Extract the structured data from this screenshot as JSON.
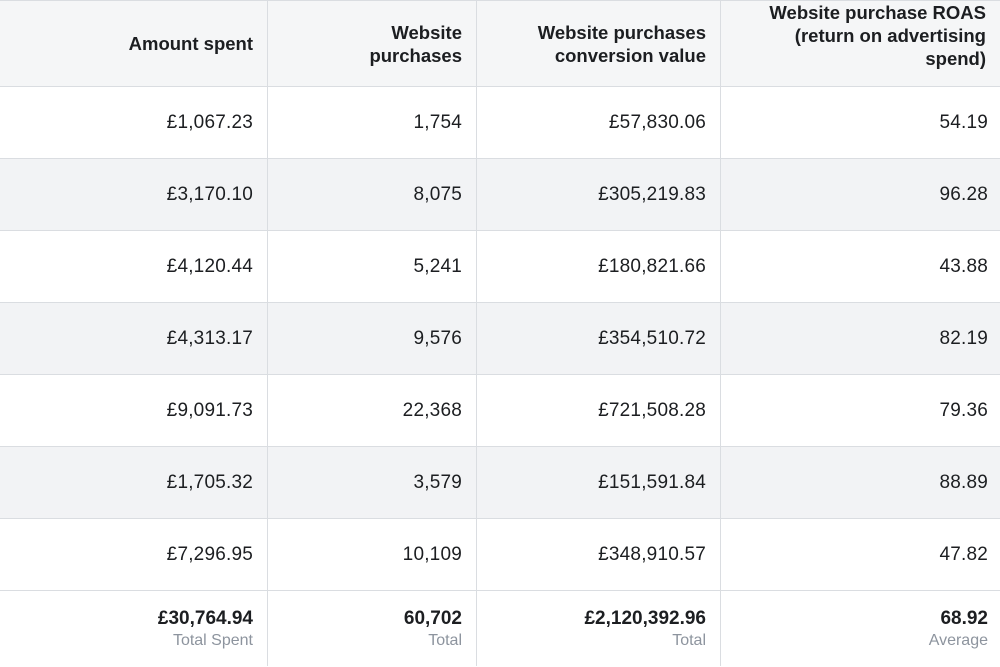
{
  "columns": [
    {
      "key": "amount_spent",
      "label": "Amount spent"
    },
    {
      "key": "website_purchases",
      "label": "Website\npurchases"
    },
    {
      "key": "conversion_value",
      "label": "Website purchases\nconversion value"
    },
    {
      "key": "roas",
      "label": "Website purchase ROAS\n(return on advertising\nspend)"
    }
  ],
  "rows": [
    [
      "£1,067.23",
      "1,754",
      "£57,830.06",
      "54.19"
    ],
    [
      "£3,170.10",
      "8,075",
      "£305,219.83",
      "96.28"
    ],
    [
      "£4,120.44",
      "5,241",
      "£180,821.66",
      "43.88"
    ],
    [
      "£4,313.17",
      "9,576",
      "£354,510.72",
      "82.19"
    ],
    [
      "£9,091.73",
      "22,368",
      "£721,508.28",
      "79.36"
    ],
    [
      "£1,705.32",
      "3,579",
      "£151,591.84",
      "88.89"
    ],
    [
      "£7,296.95",
      "10,109",
      "£348,910.57",
      "47.82"
    ]
  ],
  "totals": [
    {
      "value": "£30,764.94",
      "caption": "Total Spent"
    },
    {
      "value": "60,702",
      "caption": "Total"
    },
    {
      "value": "£2,120,392.96",
      "caption": "Total"
    },
    {
      "value": "68.92",
      "caption": "Average"
    }
  ],
  "colors": {
    "header_bg": "#f5f6f7",
    "stripe_bg": "#f2f3f5",
    "border": "#dadde1",
    "caption": "#8d949e"
  }
}
